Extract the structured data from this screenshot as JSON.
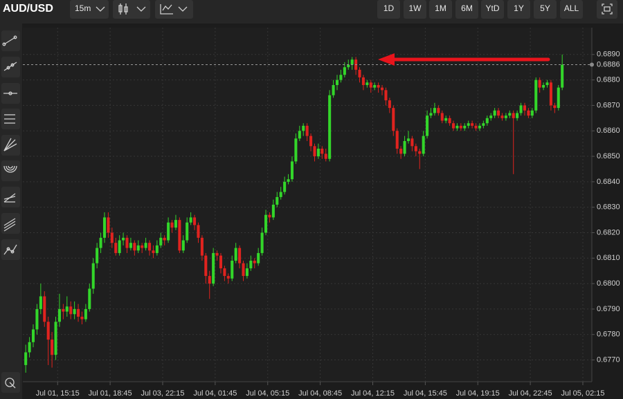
{
  "toolbar": {
    "symbol": "AUD/USD",
    "interval": "15m",
    "ranges": [
      "1D",
      "1W",
      "1M",
      "6M",
      "YtD",
      "1Y",
      "5Y",
      "ALL"
    ]
  },
  "chart_data": {
    "type": "candlestick",
    "up_color": "#33d62a",
    "down_color": "#e0231f",
    "grid": true,
    "last_price": {
      "value": 0.6886,
      "label": "0.6886"
    },
    "xlim": [
      -0.4,
      150.9
    ],
    "xticks": [
      {
        "value": 8.5,
        "label": "Jul 01, 15:15"
      },
      {
        "value": 22.5,
        "label": "Jul 01, 18:45"
      },
      {
        "value": 36.5,
        "label": "Jul 03, 22:15"
      },
      {
        "value": 50.5,
        "label": "Jul 04, 01:45"
      },
      {
        "value": 64.5,
        "label": "Jul 04, 05:15"
      },
      {
        "value": 78.5,
        "label": "Jul 04, 08:45"
      },
      {
        "value": 92.5,
        "label": "Jul 04, 12:15"
      },
      {
        "value": 106.5,
        "label": "Jul 04, 15:45"
      },
      {
        "value": 120.5,
        "label": "Jul 04, 19:15"
      },
      {
        "value": 134.5,
        "label": "Jul 04, 22:45"
      },
      {
        "value": 148.5,
        "label": "Jul 05, 02:15"
      }
    ],
    "ylim": [
      0.6762,
      0.69
    ],
    "yticks": [
      {
        "value": 0.677,
        "label": "0.6770"
      },
      {
        "value": 0.678,
        "label": "0.6780"
      },
      {
        "value": 0.679,
        "label": "0.6790"
      },
      {
        "value": 0.68,
        "label": "0.6800"
      },
      {
        "value": 0.681,
        "label": "0.6810"
      },
      {
        "value": 0.682,
        "label": "0.6820"
      },
      {
        "value": 0.683,
        "label": "0.6830"
      },
      {
        "value": 0.684,
        "label": "0.6840"
      },
      {
        "value": 0.685,
        "label": "0.6850"
      },
      {
        "value": 0.686,
        "label": "0.6860"
      },
      {
        "value": 0.687,
        "label": "0.6870"
      },
      {
        "value": 0.688,
        "label": "0.6880"
      },
      {
        "value": 0.689,
        "label": "0.6890"
      }
    ],
    "ohlc": [
      [
        0.6768,
        0.6776,
        0.6765,
        0.6773
      ],
      [
        0.6773,
        0.6779,
        0.6771,
        0.6777
      ],
      [
        0.6777,
        0.6784,
        0.6775,
        0.6782
      ],
      [
        0.6782,
        0.6792,
        0.678,
        0.679
      ],
      [
        0.679,
        0.68,
        0.6788,
        0.6795
      ],
      [
        0.6795,
        0.6797,
        0.6783,
        0.6785
      ],
      [
        0.6785,
        0.6787,
        0.6768,
        0.6778
      ],
      [
        0.6778,
        0.6781,
        0.6767,
        0.6772
      ],
      [
        0.6772,
        0.6787,
        0.677,
        0.6785
      ],
      [
        0.6785,
        0.6796,
        0.6783,
        0.679
      ],
      [
        0.679,
        0.6792,
        0.6786,
        0.6789
      ],
      [
        0.6789,
        0.6795,
        0.6787,
        0.6791
      ],
      [
        0.6791,
        0.6793,
        0.6786,
        0.6788
      ],
      [
        0.6788,
        0.6793,
        0.6786,
        0.679
      ],
      [
        0.679,
        0.6792,
        0.6785,
        0.6787
      ],
      [
        0.6787,
        0.6789,
        0.6784,
        0.6786
      ],
      [
        0.6786,
        0.6792,
        0.6785,
        0.679
      ],
      [
        0.679,
        0.68,
        0.6789,
        0.6798
      ],
      [
        0.6798,
        0.681,
        0.6796,
        0.6808
      ],
      [
        0.6808,
        0.6816,
        0.6806,
        0.6814
      ],
      [
        0.6814,
        0.682,
        0.6812,
        0.6818
      ],
      [
        0.6818,
        0.6828,
        0.6816,
        0.6826
      ],
      [
        0.6826,
        0.6828,
        0.6818,
        0.682
      ],
      [
        0.682,
        0.6822,
        0.6814,
        0.6816
      ],
      [
        0.6816,
        0.6818,
        0.6811,
        0.6812
      ],
      [
        0.6812,
        0.6819,
        0.6811,
        0.6817
      ],
      [
        0.6817,
        0.682,
        0.6815,
        0.6818
      ],
      [
        0.6818,
        0.6819,
        0.6812,
        0.6814
      ],
      [
        0.6814,
        0.6818,
        0.6813,
        0.6816
      ],
      [
        0.6816,
        0.6817,
        0.6811,
        0.6813
      ],
      [
        0.6813,
        0.6817,
        0.6812,
        0.6815
      ],
      [
        0.6815,
        0.6816,
        0.6812,
        0.6814
      ],
      [
        0.6814,
        0.6818,
        0.6813,
        0.6816
      ],
      [
        0.6816,
        0.6817,
        0.6811,
        0.6813
      ],
      [
        0.6813,
        0.6815,
        0.681,
        0.6812
      ],
      [
        0.6812,
        0.6817,
        0.6811,
        0.6815
      ],
      [
        0.6815,
        0.682,
        0.6814,
        0.6818
      ],
      [
        0.6818,
        0.6819,
        0.6815,
        0.6817
      ],
      [
        0.6817,
        0.6826,
        0.6816,
        0.6824
      ],
      [
        0.6824,
        0.6825,
        0.682,
        0.6822
      ],
      [
        0.6822,
        0.6827,
        0.6821,
        0.6825
      ],
      [
        0.6825,
        0.6826,
        0.6812,
        0.6813
      ],
      [
        0.6813,
        0.6819,
        0.6812,
        0.6817
      ],
      [
        0.6817,
        0.6826,
        0.6816,
        0.6824
      ],
      [
        0.6824,
        0.6828,
        0.6823,
        0.6826
      ],
      [
        0.6826,
        0.6827,
        0.6821,
        0.6823
      ],
      [
        0.6823,
        0.6824,
        0.6816,
        0.6818
      ],
      [
        0.6818,
        0.6819,
        0.6809,
        0.6811
      ],
      [
        0.6811,
        0.6812,
        0.68,
        0.6803
      ],
      [
        0.6803,
        0.6805,
        0.6794,
        0.68
      ],
      [
        0.68,
        0.6814,
        0.6799,
        0.6812
      ],
      [
        0.6812,
        0.6813,
        0.6809,
        0.6811
      ],
      [
        0.6811,
        0.6812,
        0.6804,
        0.6806
      ],
      [
        0.6806,
        0.6807,
        0.6801,
        0.6803
      ],
      [
        0.6803,
        0.6804,
        0.68,
        0.6802
      ],
      [
        0.6802,
        0.6811,
        0.6801,
        0.6809
      ],
      [
        0.6809,
        0.6816,
        0.6808,
        0.6814
      ],
      [
        0.6814,
        0.6815,
        0.6806,
        0.6808
      ],
      [
        0.6808,
        0.6809,
        0.6801,
        0.6803
      ],
      [
        0.6803,
        0.6808,
        0.6802,
        0.6806
      ],
      [
        0.6806,
        0.6811,
        0.6805,
        0.6809
      ],
      [
        0.6809,
        0.681,
        0.6806,
        0.6808
      ],
      [
        0.6808,
        0.6814,
        0.6807,
        0.6812
      ],
      [
        0.6812,
        0.6822,
        0.6811,
        0.682
      ],
      [
        0.682,
        0.6829,
        0.6819,
        0.6827
      ],
      [
        0.6827,
        0.6828,
        0.6824,
        0.6826
      ],
      [
        0.6826,
        0.6833,
        0.6825,
        0.6831
      ],
      [
        0.6831,
        0.6836,
        0.683,
        0.6834
      ],
      [
        0.6834,
        0.6838,
        0.6833,
        0.6836
      ],
      [
        0.6836,
        0.6842,
        0.6835,
        0.684
      ],
      [
        0.684,
        0.6843,
        0.6839,
        0.6841
      ],
      [
        0.6841,
        0.685,
        0.684,
        0.6848
      ],
      [
        0.6848,
        0.6859,
        0.6847,
        0.6857
      ],
      [
        0.6857,
        0.6862,
        0.6856,
        0.686
      ],
      [
        0.686,
        0.6863,
        0.6858,
        0.6862
      ],
      [
        0.6862,
        0.6863,
        0.6856,
        0.6858
      ],
      [
        0.6858,
        0.6859,
        0.6852,
        0.6854
      ],
      [
        0.6854,
        0.6855,
        0.6848,
        0.685
      ],
      [
        0.685,
        0.6855,
        0.6849,
        0.6853
      ],
      [
        0.6853,
        0.6854,
        0.6849,
        0.6851
      ],
      [
        0.6851,
        0.6853,
        0.6848,
        0.6849
      ],
      [
        0.6849,
        0.6876,
        0.6848,
        0.6874
      ],
      [
        0.6874,
        0.688,
        0.6873,
        0.6878
      ],
      [
        0.6878,
        0.6882,
        0.6876,
        0.688
      ],
      [
        0.688,
        0.6884,
        0.6879,
        0.6882
      ],
      [
        0.6882,
        0.6887,
        0.6881,
        0.6885
      ],
      [
        0.6885,
        0.6888,
        0.6884,
        0.6886
      ],
      [
        0.6886,
        0.6889,
        0.6884,
        0.6888
      ],
      [
        0.6888,
        0.6889,
        0.6882,
        0.6884
      ],
      [
        0.6884,
        0.6885,
        0.6879,
        0.6881
      ],
      [
        0.6881,
        0.6882,
        0.6876,
        0.6878
      ],
      [
        0.6878,
        0.688,
        0.6877,
        0.6879
      ],
      [
        0.6879,
        0.688,
        0.6875,
        0.6877
      ],
      [
        0.6877,
        0.6879,
        0.6876,
        0.6878
      ],
      [
        0.6878,
        0.6879,
        0.6875,
        0.6877
      ],
      [
        0.6877,
        0.6878,
        0.6874,
        0.6876
      ],
      [
        0.6876,
        0.6877,
        0.687,
        0.6872
      ],
      [
        0.6872,
        0.6873,
        0.6867,
        0.6869
      ],
      [
        0.6869,
        0.687,
        0.6858,
        0.686
      ],
      [
        0.686,
        0.6861,
        0.6851,
        0.6853
      ],
      [
        0.6853,
        0.6854,
        0.6849,
        0.6851
      ],
      [
        0.6851,
        0.6858,
        0.685,
        0.6856
      ],
      [
        0.6856,
        0.686,
        0.6855,
        0.6857
      ],
      [
        0.6857,
        0.6858,
        0.6852,
        0.6854
      ],
      [
        0.6854,
        0.6855,
        0.685,
        0.6852
      ],
      [
        0.6852,
        0.6853,
        0.6845,
        0.6851
      ],
      [
        0.6851,
        0.686,
        0.685,
        0.6858
      ],
      [
        0.6858,
        0.6868,
        0.6857,
        0.6866
      ],
      [
        0.6866,
        0.6869,
        0.6865,
        0.6867
      ],
      [
        0.6867,
        0.6871,
        0.6866,
        0.6869
      ],
      [
        0.6869,
        0.687,
        0.6866,
        0.6867
      ],
      [
        0.6867,
        0.6868,
        0.6863,
        0.6864
      ],
      [
        0.6864,
        0.6866,
        0.6863,
        0.6865
      ],
      [
        0.6865,
        0.6866,
        0.6862,
        0.6863
      ],
      [
        0.6863,
        0.6864,
        0.686,
        0.6861
      ],
      [
        0.6861,
        0.6863,
        0.686,
        0.6862
      ],
      [
        0.6862,
        0.6863,
        0.686,
        0.6861
      ],
      [
        0.6861,
        0.6863,
        0.686,
        0.6862
      ],
      [
        0.6862,
        0.6864,
        0.6861,
        0.6863
      ],
      [
        0.6863,
        0.6864,
        0.6861,
        0.6862
      ],
      [
        0.6862,
        0.6863,
        0.686,
        0.6861
      ],
      [
        0.6861,
        0.6863,
        0.686,
        0.6862
      ],
      [
        0.6862,
        0.6864,
        0.6861,
        0.6863
      ],
      [
        0.6863,
        0.6866,
        0.6862,
        0.6865
      ],
      [
        0.6865,
        0.6867,
        0.6864,
        0.6866
      ],
      [
        0.6866,
        0.6869,
        0.6865,
        0.6868
      ],
      [
        0.6868,
        0.6869,
        0.6865,
        0.6866
      ],
      [
        0.6866,
        0.6867,
        0.6864,
        0.6865
      ],
      [
        0.6865,
        0.6867,
        0.6864,
        0.6866
      ],
      [
        0.6866,
        0.6868,
        0.6865,
        0.6867
      ],
      [
        0.6867,
        0.6868,
        0.6843,
        0.6865
      ],
      [
        0.6865,
        0.6868,
        0.6864,
        0.6867
      ],
      [
        0.6867,
        0.6871,
        0.6866,
        0.687
      ],
      [
        0.687,
        0.6871,
        0.6866,
        0.6868
      ],
      [
        0.6868,
        0.6869,
        0.6865,
        0.6866
      ],
      [
        0.6866,
        0.6869,
        0.6865,
        0.6868
      ],
      [
        0.6868,
        0.6881,
        0.6867,
        0.688
      ],
      [
        0.688,
        0.6881,
        0.6875,
        0.6877
      ],
      [
        0.6877,
        0.6879,
        0.6876,
        0.6878
      ],
      [
        0.6878,
        0.688,
        0.6877,
        0.6879
      ],
      [
        0.6879,
        0.688,
        0.6868,
        0.687
      ],
      [
        0.687,
        0.6871,
        0.6867,
        0.6869
      ],
      [
        0.6869,
        0.6878,
        0.6868,
        0.6877
      ],
      [
        0.6877,
        0.689,
        0.6876,
        0.6886
      ]
    ]
  }
}
